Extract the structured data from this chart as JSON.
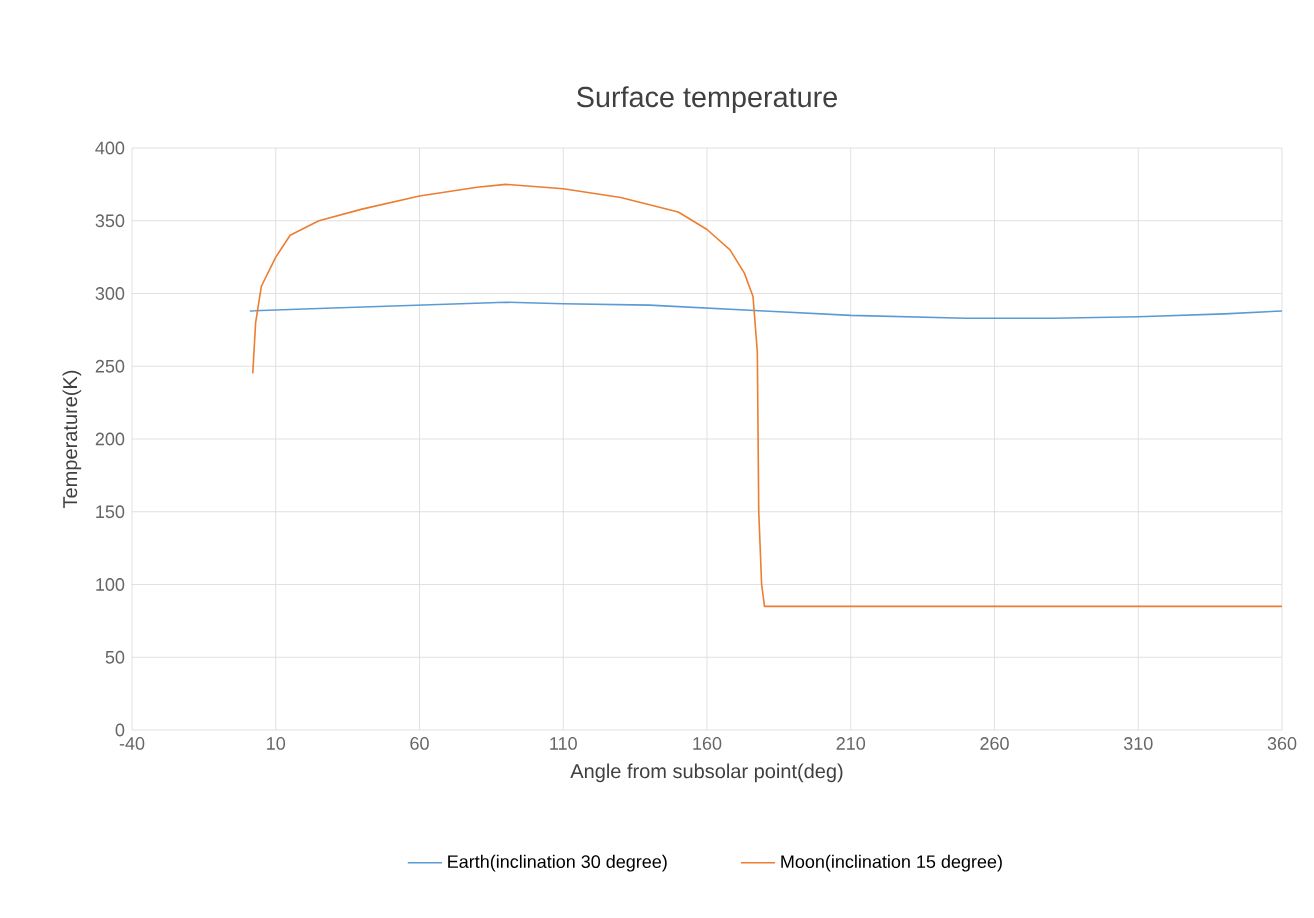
{
  "chart_data": {
    "type": "line",
    "title": "Surface temperature",
    "xlabel": "Angle from subsolar point(deg)",
    "ylabel": "Temperature(K)",
    "xlim": [
      -40,
      360
    ],
    "xticks": [
      -40,
      10,
      60,
      110,
      160,
      210,
      260,
      310,
      360
    ],
    "ylim": [
      0,
      400
    ],
    "yticks": [
      0,
      50,
      100,
      150,
      200,
      250,
      300,
      350,
      400
    ],
    "grid": true,
    "legend": "bottom",
    "marker": "none",
    "line_style": "solid",
    "series": [
      {
        "name": "Earth(inclination 30 degree)",
        "color": "#5b9bd5",
        "x": [
          1,
          30,
          60,
          90,
          110,
          140,
          160,
          180,
          210,
          250,
          280,
          310,
          340,
          360
        ],
        "values": [
          288,
          290,
          292,
          294,
          293,
          292,
          290,
          288,
          285,
          283,
          283,
          284,
          286,
          288
        ]
      },
      {
        "name": "Moon(inclination 15 degree)",
        "color": "#ed7d31",
        "x": [
          2,
          3,
          5,
          10,
          15,
          25,
          40,
          60,
          80,
          90,
          110,
          130,
          150,
          160,
          168,
          173,
          176,
          177.5,
          178,
          179,
          180,
          360
        ],
        "values": [
          245,
          280,
          305,
          325,
          340,
          350,
          358,
          367,
          373,
          375,
          372,
          366,
          356,
          344,
          330,
          314,
          298,
          260,
          150,
          100,
          85,
          85
        ]
      }
    ]
  }
}
